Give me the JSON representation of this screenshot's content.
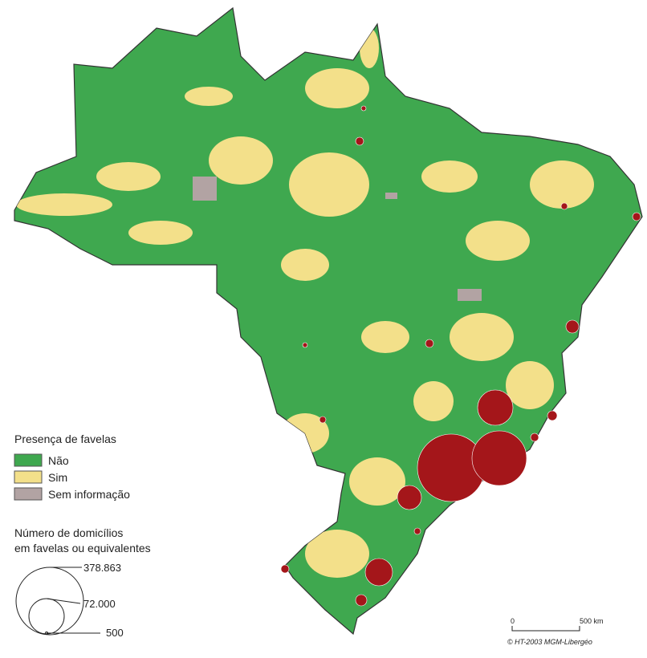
{
  "legend": {
    "title": "Presença de favelas",
    "items": [
      {
        "label": "Não",
        "color": "#3fa84f"
      },
      {
        "label": "Sim",
        "color": "#f3e08a"
      },
      {
        "label": "Sem informação",
        "color": "#b2a3a3"
      }
    ]
  },
  "size_legend": {
    "title_lines": [
      "Número de domicílios",
      "em favelas ou equivalentes"
    ],
    "values": [
      "378.863",
      "72.000",
      "500"
    ]
  },
  "scale": {
    "start": "0",
    "end": "500 km"
  },
  "credit": "© HT-2003 MGM-Libergéo"
}
